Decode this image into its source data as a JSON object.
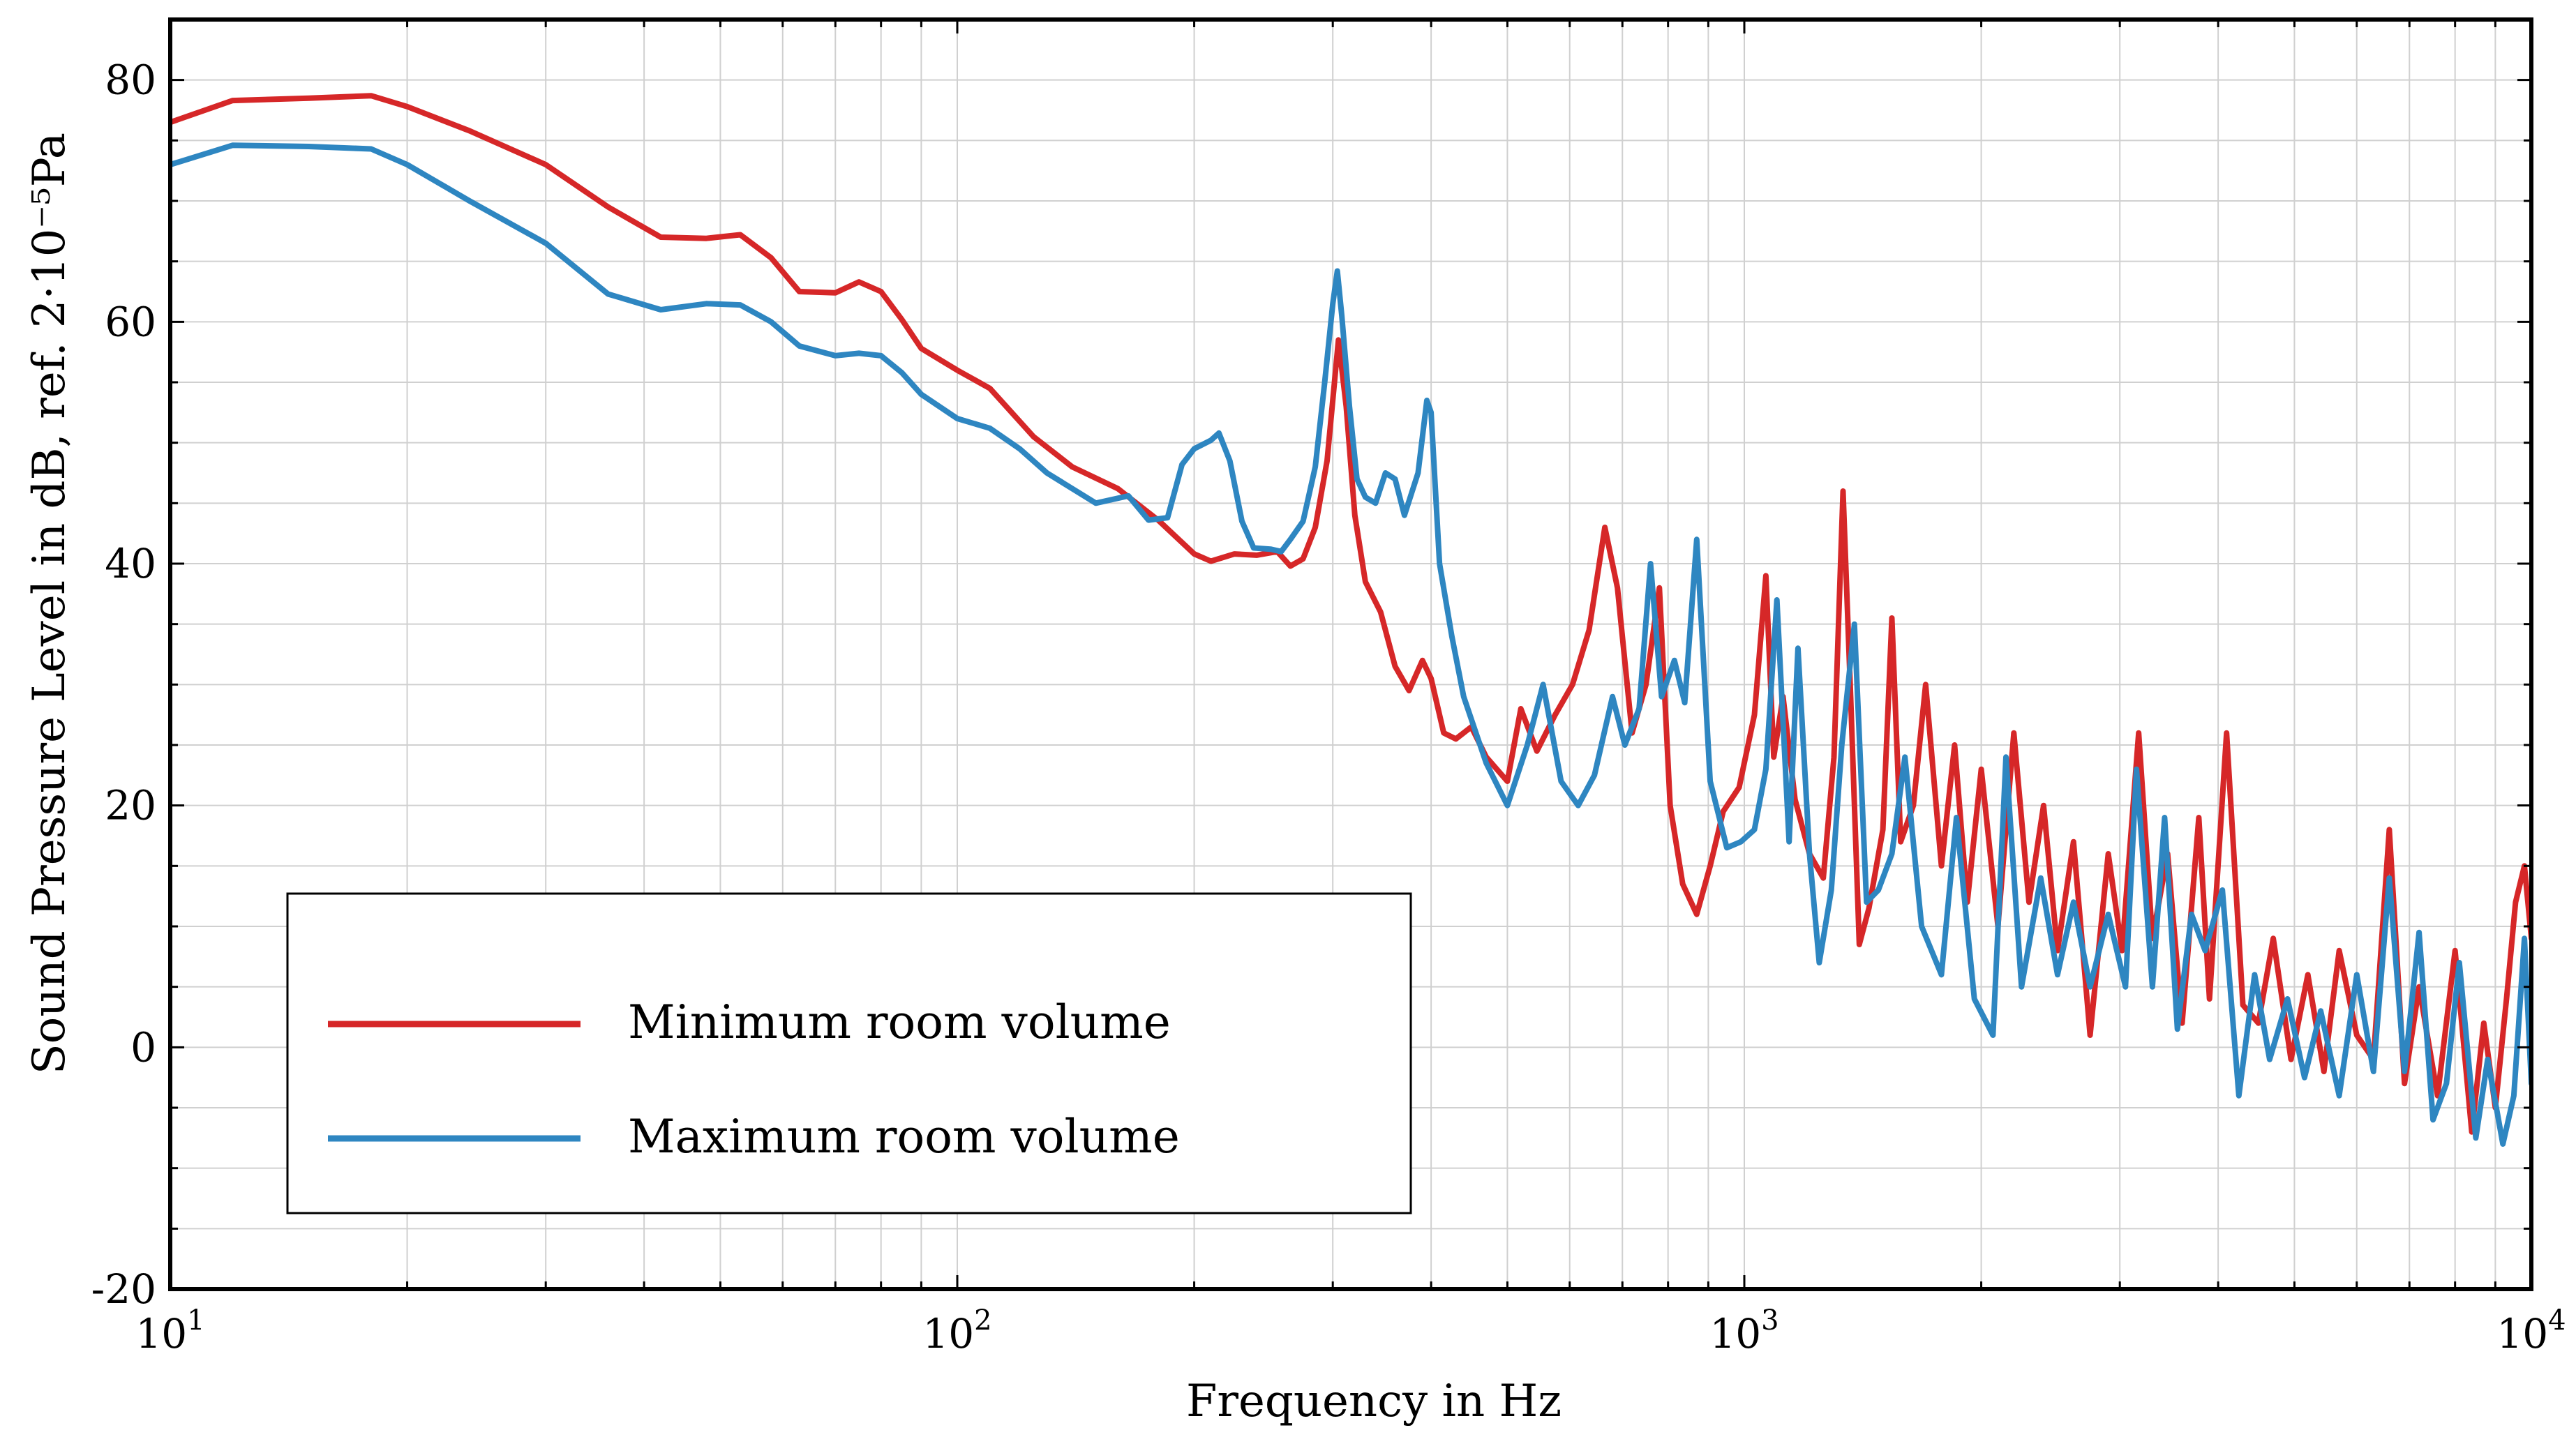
{
  "chart_data": {
    "type": "line",
    "title": "",
    "xlabel": "Frequency in Hz",
    "ylabel": "Sound Pressure Level in dB, ref. 2·10⁻⁵Pa",
    "xscale": "log",
    "xlim": [
      10,
      10000
    ],
    "ylim": [
      -20,
      85
    ],
    "grid": true,
    "legend_position": "bottom-left",
    "x_ticks": [
      {
        "base": "10",
        "exp": "1"
      },
      {
        "base": "10",
        "exp": "2"
      },
      {
        "base": "10",
        "exp": "3"
      },
      {
        "base": "10",
        "exp": "4"
      }
    ],
    "y_ticks": [
      "-20",
      "0",
      "20",
      "40",
      "60",
      "80"
    ],
    "y_tick_values": [
      -20,
      0,
      20,
      40,
      60,
      80
    ],
    "series": [
      {
        "name": "Minimum room volume",
        "color": "#d62728",
        "points": [
          [
            10,
            76.5
          ],
          [
            12,
            78.3
          ],
          [
            15,
            78.5
          ],
          [
            18,
            78.7
          ],
          [
            20,
            77.8
          ],
          [
            24,
            75.8
          ],
          [
            30,
            73.0
          ],
          [
            36,
            69.5
          ],
          [
            42,
            67.0
          ],
          [
            48,
            66.9
          ],
          [
            53,
            67.2
          ],
          [
            58,
            65.3
          ],
          [
            63,
            62.5
          ],
          [
            70,
            62.4
          ],
          [
            75,
            63.3
          ],
          [
            80,
            62.5
          ],
          [
            85,
            60.2
          ],
          [
            90,
            57.8
          ],
          [
            100,
            56.0
          ],
          [
            110,
            54.5
          ],
          [
            125,
            50.5
          ],
          [
            140,
            48.0
          ],
          [
            160,
            46.2
          ],
          [
            180,
            43.6
          ],
          [
            200,
            40.8
          ],
          [
            210,
            40.2
          ],
          [
            225,
            40.8
          ],
          [
            240,
            40.7
          ],
          [
            255,
            41.0
          ],
          [
            265,
            39.8
          ],
          [
            275,
            40.4
          ],
          [
            285,
            43.0
          ],
          [
            295,
            48.5
          ],
          [
            305,
            58.5
          ],
          [
            312,
            53.0
          ],
          [
            320,
            44.0
          ],
          [
            330,
            38.5
          ],
          [
            345,
            36.0
          ],
          [
            360,
            31.5
          ],
          [
            375,
            29.5
          ],
          [
            390,
            32.0
          ],
          [
            400,
            30.5
          ],
          [
            415,
            26.0
          ],
          [
            430,
            25.5
          ],
          [
            450,
            26.5
          ],
          [
            470,
            24.0
          ],
          [
            500,
            22.0
          ],
          [
            520,
            28.0
          ],
          [
            545,
            24.5
          ],
          [
            575,
            27.5
          ],
          [
            605,
            30.0
          ],
          [
            635,
            34.5
          ],
          [
            665,
            43.0
          ],
          [
            690,
            38.0
          ],
          [
            720,
            26.0
          ],
          [
            750,
            30.0
          ],
          [
            780,
            38.0
          ],
          [
            805,
            20.0
          ],
          [
            835,
            13.5
          ],
          [
            870,
            11.0
          ],
          [
            905,
            15.0
          ],
          [
            940,
            19.5
          ],
          [
            985,
            21.5
          ],
          [
            1030,
            27.5
          ],
          [
            1065,
            39.0
          ],
          [
            1090,
            24.0
          ],
          [
            1120,
            29.0
          ],
          [
            1160,
            20.5
          ],
          [
            1210,
            16.0
          ],
          [
            1260,
            14.0
          ],
          [
            1300,
            24.0
          ],
          [
            1335,
            46.0
          ],
          [
            1365,
            29.0
          ],
          [
            1400,
            8.5
          ],
          [
            1440,
            11.5
          ],
          [
            1500,
            18.0
          ],
          [
            1540,
            35.5
          ],
          [
            1580,
            17.0
          ],
          [
            1640,
            20.0
          ],
          [
            1700,
            30.0
          ],
          [
            1780,
            15.0
          ],
          [
            1850,
            25.0
          ],
          [
            1920,
            12.0
          ],
          [
            2000,
            23.0
          ],
          [
            2100,
            10.0
          ],
          [
            2200,
            26.0
          ],
          [
            2300,
            12.0
          ],
          [
            2400,
            20.0
          ],
          [
            2500,
            8.0
          ],
          [
            2620,
            17.0
          ],
          [
            2750,
            1.0
          ],
          [
            2900,
            16.0
          ],
          [
            3020,
            8.0
          ],
          [
            3170,
            26.0
          ],
          [
            3300,
            9.0
          ],
          [
            3450,
            16.0
          ],
          [
            3600,
            2.0
          ],
          [
            3780,
            19.0
          ],
          [
            3900,
            4.0
          ],
          [
            4100,
            26.0
          ],
          [
            4300,
            3.5
          ],
          [
            4500,
            2.0
          ],
          [
            4700,
            9.0
          ],
          [
            4950,
            -1.0
          ],
          [
            5200,
            6.0
          ],
          [
            5450,
            -2.0
          ],
          [
            5700,
            8.0
          ],
          [
            6000,
            1.0
          ],
          [
            6300,
            -1.0
          ],
          [
            6600,
            18.0
          ],
          [
            6900,
            -3.0
          ],
          [
            7200,
            5.0
          ],
          [
            7600,
            -4.0
          ],
          [
            8000,
            8.0
          ],
          [
            8400,
            -7.0
          ],
          [
            8700,
            2.0
          ],
          [
            9000,
            -5.0
          ],
          [
            9300,
            4.0
          ],
          [
            9550,
            12.0
          ],
          [
            9800,
            15.0
          ],
          [
            10000,
            9.0
          ]
        ]
      },
      {
        "name": "Maximum room volume",
        "color": "#2e86c1",
        "points": [
          [
            10,
            73.0
          ],
          [
            12,
            74.6
          ],
          [
            15,
            74.5
          ],
          [
            18,
            74.3
          ],
          [
            20,
            73.0
          ],
          [
            24,
            70.0
          ],
          [
            30,
            66.5
          ],
          [
            36,
            62.3
          ],
          [
            42,
            61.0
          ],
          [
            48,
            61.5
          ],
          [
            53,
            61.4
          ],
          [
            58,
            60.0
          ],
          [
            63,
            58.0
          ],
          [
            70,
            57.2
          ],
          [
            75,
            57.4
          ],
          [
            80,
            57.2
          ],
          [
            85,
            55.8
          ],
          [
            90,
            54.0
          ],
          [
            100,
            52.0
          ],
          [
            110,
            51.2
          ],
          [
            120,
            49.5
          ],
          [
            130,
            47.5
          ],
          [
            150,
            45.0
          ],
          [
            165,
            45.6
          ],
          [
            175,
            43.6
          ],
          [
            185,
            43.8
          ],
          [
            193,
            48.2
          ],
          [
            200,
            49.5
          ],
          [
            210,
            50.2
          ],
          [
            215,
            50.8
          ],
          [
            222,
            48.5
          ],
          [
            230,
            43.5
          ],
          [
            238,
            41.3
          ],
          [
            250,
            41.2
          ],
          [
            258,
            41.0
          ],
          [
            265,
            42.0
          ],
          [
            275,
            43.5
          ],
          [
            285,
            48.0
          ],
          [
            293,
            55.0
          ],
          [
            300,
            61.5
          ],
          [
            304,
            64.2
          ],
          [
            308,
            60.5
          ],
          [
            315,
            53.0
          ],
          [
            322,
            47.0
          ],
          [
            330,
            45.5
          ],
          [
            340,
            45.0
          ],
          [
            350,
            47.5
          ],
          [
            360,
            47.0
          ],
          [
            370,
            44.0
          ],
          [
            385,
            47.5
          ],
          [
            395,
            53.5
          ],
          [
            400,
            52.5
          ],
          [
            410,
            40.0
          ],
          [
            425,
            34.0
          ],
          [
            440,
            29.0
          ],
          [
            470,
            23.5
          ],
          [
            500,
            20.0
          ],
          [
            530,
            25.0
          ],
          [
            555,
            30.0
          ],
          [
            585,
            22.0
          ],
          [
            615,
            20.0
          ],
          [
            645,
            22.5
          ],
          [
            680,
            29.0
          ],
          [
            705,
            25.0
          ],
          [
            735,
            28.0
          ],
          [
            760,
            40.0
          ],
          [
            785,
            29.0
          ],
          [
            815,
            32.0
          ],
          [
            840,
            28.5
          ],
          [
            870,
            42.0
          ],
          [
            905,
            22.0
          ],
          [
            950,
            16.5
          ],
          [
            990,
            17.0
          ],
          [
            1030,
            18.0
          ],
          [
            1065,
            23.0
          ],
          [
            1100,
            37.0
          ],
          [
            1140,
            17.0
          ],
          [
            1170,
            33.0
          ],
          [
            1210,
            16.0
          ],
          [
            1245,
            7.0
          ],
          [
            1290,
            13.0
          ],
          [
            1330,
            25.0
          ],
          [
            1380,
            35.0
          ],
          [
            1430,
            12.0
          ],
          [
            1480,
            13.0
          ],
          [
            1540,
            16.0
          ],
          [
            1600,
            24.0
          ],
          [
            1680,
            10.0
          ],
          [
            1780,
            6.0
          ],
          [
            1860,
            19.0
          ],
          [
            1960,
            4.0
          ],
          [
            2070,
            1.0
          ],
          [
            2150,
            24.0
          ],
          [
            2250,
            5.0
          ],
          [
            2380,
            14.0
          ],
          [
            2500,
            6.0
          ],
          [
            2620,
            12.0
          ],
          [
            2750,
            5.0
          ],
          [
            2900,
            11.0
          ],
          [
            3050,
            5.0
          ],
          [
            3150,
            23.0
          ],
          [
            3300,
            5.0
          ],
          [
            3420,
            19.0
          ],
          [
            3550,
            1.5
          ],
          [
            3700,
            11.0
          ],
          [
            3850,
            8.0
          ],
          [
            4050,
            13.0
          ],
          [
            4250,
            -4.0
          ],
          [
            4450,
            6.0
          ],
          [
            4650,
            -1.0
          ],
          [
            4900,
            4.0
          ],
          [
            5150,
            -2.5
          ],
          [
            5400,
            3.0
          ],
          [
            5700,
            -4.0
          ],
          [
            6000,
            6.0
          ],
          [
            6300,
            -2.0
          ],
          [
            6600,
            14.0
          ],
          [
            6900,
            -2.0
          ],
          [
            7200,
            9.5
          ],
          [
            7500,
            -6.0
          ],
          [
            7800,
            -3.0
          ],
          [
            8100,
            7.0
          ],
          [
            8500,
            -7.5
          ],
          [
            8800,
            -1.0
          ],
          [
            9200,
            -8.0
          ],
          [
            9500,
            -4.0
          ],
          [
            9800,
            9.0
          ],
          [
            10000,
            -3.0
          ]
        ]
      }
    ]
  }
}
